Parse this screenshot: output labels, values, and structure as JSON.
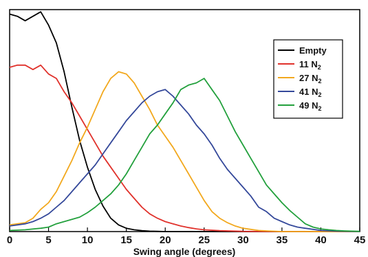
{
  "chart_data": {
    "type": "line",
    "xlabel": "Swing angle (degrees)",
    "ylabel": "",
    "title": "",
    "xlim": [
      0,
      45
    ],
    "ylim": [
      0,
      1.0
    ],
    "xticks": [
      "0",
      "5",
      "10",
      "15",
      "20",
      "25",
      "30",
      "35",
      "40",
      "45"
    ],
    "yticks_shown": false,
    "legend_position": "top-right",
    "series": [
      {
        "name": "Empty",
        "legend_main": "Empty",
        "legend_sub": "",
        "color": "#000000",
        "x": [
          0,
          1,
          2,
          3,
          4,
          5,
          6,
          7,
          8,
          9,
          10,
          11,
          12,
          13,
          14,
          15,
          16,
          17,
          18,
          19,
          20,
          22,
          25,
          30,
          35,
          40,
          45
        ],
        "y": [
          0.98,
          0.97,
          0.95,
          0.97,
          0.99,
          0.93,
          0.85,
          0.72,
          0.56,
          0.41,
          0.29,
          0.19,
          0.115,
          0.06,
          0.03,
          0.015,
          0.008,
          0.004,
          0.002,
          0.001,
          0,
          0,
          0,
          0,
          0,
          0,
          0
        ]
      },
      {
        "name": "11 N2",
        "legend_main": "11 N",
        "legend_sub": "2",
        "color": "#e0312b",
        "x": [
          0,
          1,
          2,
          3,
          4,
          5,
          6,
          7,
          8,
          9,
          10,
          11,
          12,
          13,
          14,
          15,
          16,
          17,
          18,
          19,
          20,
          21,
          22,
          23,
          24,
          25,
          27,
          30,
          35,
          40,
          45
        ],
        "y": [
          0.74,
          0.75,
          0.75,
          0.73,
          0.75,
          0.71,
          0.69,
          0.63,
          0.58,
          0.52,
          0.46,
          0.4,
          0.34,
          0.29,
          0.24,
          0.19,
          0.15,
          0.11,
          0.08,
          0.06,
          0.045,
          0.035,
          0.025,
          0.018,
          0.012,
          0.008,
          0.004,
          0.001,
          0,
          0,
          0
        ]
      },
      {
        "name": "27 N2",
        "legend_main": "27 N",
        "legend_sub": "2",
        "color": "#f2a81d",
        "x": [
          0,
          1,
          2,
          3,
          4,
          5,
          6,
          7,
          8,
          9,
          10,
          11,
          12,
          13,
          14,
          15,
          16,
          17,
          18,
          19,
          20,
          21,
          22,
          23,
          24,
          25,
          26,
          27,
          28,
          29,
          30,
          31,
          32,
          33,
          35,
          40,
          45
        ],
        "y": [
          0.03,
          0.035,
          0.04,
          0.06,
          0.1,
          0.13,
          0.18,
          0.25,
          0.32,
          0.4,
          0.47,
          0.55,
          0.63,
          0.69,
          0.72,
          0.71,
          0.67,
          0.61,
          0.55,
          0.48,
          0.43,
          0.38,
          0.32,
          0.26,
          0.2,
          0.14,
          0.09,
          0.06,
          0.04,
          0.025,
          0.015,
          0.01,
          0.005,
          0.003,
          0,
          0,
          0
        ]
      },
      {
        "name": "41 N2",
        "legend_main": "41 N",
        "legend_sub": "2",
        "color": "#34489a",
        "x": [
          0,
          1,
          2,
          3,
          4,
          5,
          6,
          7,
          8,
          9,
          10,
          11,
          12,
          13,
          14,
          15,
          16,
          17,
          18,
          19,
          20,
          21,
          22,
          23,
          24,
          25,
          26,
          27,
          28,
          29,
          30,
          31,
          32,
          33,
          34,
          35,
          36,
          37,
          38,
          40,
          42,
          45
        ],
        "y": [
          0.025,
          0.03,
          0.035,
          0.045,
          0.06,
          0.08,
          0.11,
          0.14,
          0.18,
          0.22,
          0.26,
          0.3,
          0.35,
          0.4,
          0.45,
          0.5,
          0.54,
          0.58,
          0.61,
          0.63,
          0.64,
          0.61,
          0.57,
          0.53,
          0.48,
          0.44,
          0.39,
          0.33,
          0.28,
          0.24,
          0.2,
          0.16,
          0.11,
          0.09,
          0.06,
          0.045,
          0.03,
          0.02,
          0.015,
          0.005,
          0.002,
          0
        ]
      },
      {
        "name": "49 N2",
        "legend_main": "49 N",
        "legend_sub": "2",
        "color": "#22a03c",
        "x": [
          0,
          2,
          4,
          5,
          6,
          7,
          8,
          9,
          10,
          11,
          12,
          13,
          14,
          15,
          16,
          17,
          18,
          19,
          20,
          21,
          22,
          23,
          24,
          25,
          26,
          27,
          28,
          29,
          30,
          31,
          32,
          33,
          34,
          35,
          36,
          37,
          38,
          39,
          40,
          41,
          42,
          43,
          45
        ],
        "y": [
          0.005,
          0.008,
          0.015,
          0.02,
          0.035,
          0.045,
          0.055,
          0.065,
          0.085,
          0.11,
          0.14,
          0.17,
          0.21,
          0.26,
          0.32,
          0.38,
          0.44,
          0.48,
          0.53,
          0.58,
          0.64,
          0.66,
          0.67,
          0.69,
          0.64,
          0.59,
          0.52,
          0.45,
          0.39,
          0.33,
          0.27,
          0.21,
          0.17,
          0.13,
          0.095,
          0.065,
          0.035,
          0.02,
          0.012,
          0.008,
          0.005,
          0.003,
          0.001
        ]
      }
    ]
  }
}
